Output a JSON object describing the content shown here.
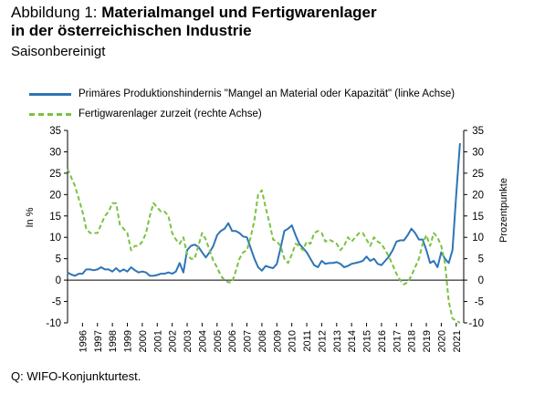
{
  "figure": {
    "title_prefix": "Abbildung 1: ",
    "title_line1": "Materialmangel und Fertigwarenlager",
    "title_line2": "in der österreichischen Industrie",
    "subtitle": "Saisonbereinigt",
    "source": "Q: WIFO-Konjunkturtest."
  },
  "colors": {
    "series1": "#2e75b6",
    "series2": "#7ac143",
    "axis": "#000000"
  },
  "chart_data": {
    "type": "line",
    "xlabel": "",
    "ylabel_left": "In %",
    "ylabel_right": "Prozentpunkte",
    "ylim_left": [
      -10,
      35
    ],
    "ylim_right": [
      -10,
      35
    ],
    "yticks": [
      -10,
      -5,
      0,
      5,
      10,
      15,
      20,
      25,
      30,
      35
    ],
    "xlim": [
      1995.0,
      2021.5
    ],
    "xticks": [
      "1996",
      "1997",
      "1998",
      "1999",
      "2000",
      "2001",
      "2002",
      "2003",
      "2004",
      "2005",
      "2006",
      "2007",
      "2008",
      "2009",
      "2010",
      "2011",
      "2012",
      "2013",
      "2014",
      "2015",
      "2016",
      "2017",
      "2018",
      "2019",
      "2020",
      "2021"
    ],
    "grid": false,
    "legend_position": "top",
    "series": [
      {
        "name": "Primäres Produktionshindernis \"Mangel an Material oder Kapazität\" (linke Achse)",
        "axis": "left",
        "style": "solid",
        "x": [
          1995.0,
          1995.25,
          1995.5,
          1995.75,
          1996.0,
          1996.25,
          1996.5,
          1996.75,
          1997.0,
          1997.25,
          1997.5,
          1997.75,
          1998.0,
          1998.25,
          1998.5,
          1998.75,
          1999.0,
          1999.25,
          1999.5,
          1999.75,
          2000.0,
          2000.25,
          2000.5,
          2000.75,
          2001.0,
          2001.25,
          2001.5,
          2001.75,
          2002.0,
          2002.25,
          2002.5,
          2002.75,
          2003.0,
          2003.25,
          2003.5,
          2003.75,
          2004.0,
          2004.25,
          2004.5,
          2004.75,
          2005.0,
          2005.25,
          2005.5,
          2005.75,
          2006.0,
          2006.25,
          2006.5,
          2006.75,
          2007.0,
          2007.25,
          2007.5,
          2007.75,
          2008.0,
          2008.25,
          2008.5,
          2008.75,
          2009.0,
          2009.25,
          2009.5,
          2009.75,
          2010.0,
          2010.25,
          2010.5,
          2010.75,
          2011.0,
          2011.25,
          2011.5,
          2011.75,
          2012.0,
          2012.25,
          2012.5,
          2012.75,
          2013.0,
          2013.25,
          2013.5,
          2013.75,
          2014.0,
          2014.25,
          2014.5,
          2014.75,
          2015.0,
          2015.25,
          2015.5,
          2015.75,
          2016.0,
          2016.25,
          2016.5,
          2016.75,
          2017.0,
          2017.25,
          2017.5,
          2017.75,
          2018.0,
          2018.25,
          2018.5,
          2018.75,
          2019.0,
          2019.25,
          2019.5,
          2019.75,
          2020.0,
          2020.25,
          2020.5,
          2020.75,
          2021.0,
          2021.25
        ],
        "values": [
          1.8,
          1.3,
          1.0,
          1.5,
          1.5,
          2.5,
          2.5,
          2.3,
          2.5,
          3.0,
          2.5,
          2.5,
          2.0,
          2.8,
          2.0,
          2.5,
          2.0,
          3.0,
          2.3,
          1.8,
          2.0,
          1.8,
          1.0,
          1.0,
          1.2,
          1.5,
          1.5,
          1.8,
          1.5,
          2.0,
          4.0,
          1.8,
          7.0,
          8.0,
          8.3,
          7.8,
          6.5,
          5.3,
          6.5,
          8.0,
          10.5,
          11.5,
          12.0,
          13.3,
          11.5,
          11.5,
          11.0,
          10.2,
          10.0,
          7.5,
          5.0,
          3.0,
          2.2,
          3.3,
          3.0,
          2.8,
          3.8,
          7.5,
          11.5,
          12.0,
          12.8,
          10.5,
          8.5,
          7.5,
          6.5,
          5.0,
          3.5,
          3.0,
          4.5,
          3.8,
          4.0,
          4.0,
          4.2,
          3.8,
          3.0,
          3.3,
          3.8,
          4.0,
          4.2,
          4.5,
          5.5,
          4.5,
          5.0,
          3.8,
          3.5,
          4.5,
          5.5,
          7.0,
          9.0,
          9.3,
          9.3,
          10.5,
          12.0,
          11.0,
          9.5,
          9.5,
          7.0,
          4.0,
          4.5,
          3.0,
          6.5,
          5.0,
          4.0,
          7.0,
          20.0,
          32.0
        ]
      },
      {
        "name": "Fertigwarenlager zurzeit (rechte Achse)",
        "axis": "right",
        "style": "dashed",
        "x": [
          1995.0,
          1995.25,
          1995.5,
          1995.75,
          1996.0,
          1996.25,
          1996.5,
          1996.75,
          1997.0,
          1997.25,
          1997.5,
          1997.75,
          1998.0,
          1998.25,
          1998.5,
          1998.75,
          1999.0,
          1999.25,
          1999.5,
          1999.75,
          2000.0,
          2000.25,
          2000.5,
          2000.75,
          2001.0,
          2001.25,
          2001.5,
          2001.75,
          2002.0,
          2002.25,
          2002.5,
          2002.75,
          2003.0,
          2003.25,
          2003.5,
          2003.75,
          2004.0,
          2004.25,
          2004.5,
          2004.75,
          2005.0,
          2005.25,
          2005.5,
          2005.75,
          2006.0,
          2006.25,
          2006.5,
          2006.75,
          2007.0,
          2007.25,
          2007.5,
          2007.75,
          2008.0,
          2008.25,
          2008.5,
          2008.75,
          2009.0,
          2009.25,
          2009.5,
          2009.75,
          2010.0,
          2010.25,
          2010.5,
          2010.75,
          2011.0,
          2011.25,
          2011.5,
          2011.75,
          2012.0,
          2012.25,
          2012.5,
          2012.75,
          2013.0,
          2013.25,
          2013.5,
          2013.75,
          2014.0,
          2014.25,
          2014.5,
          2014.75,
          2015.0,
          2015.25,
          2015.5,
          2015.75,
          2016.0,
          2016.25,
          2016.5,
          2016.75,
          2017.0,
          2017.25,
          2017.5,
          2017.75,
          2018.0,
          2018.25,
          2018.5,
          2018.75,
          2019.0,
          2019.25,
          2019.5,
          2019.75,
          2020.0,
          2020.25,
          2020.5,
          2020.75,
          2021.0,
          2021.25
        ],
        "values": [
          26.0,
          24.0,
          22.0,
          19.0,
          16.0,
          12.0,
          11.0,
          11.0,
          11.0,
          13.0,
          15.0,
          16.0,
          18.0,
          18.0,
          13.0,
          12.0,
          11.0,
          7.0,
          8.0,
          8.0,
          9.0,
          11.0,
          15.0,
          18.0,
          17.0,
          16.0,
          16.0,
          15.0,
          11.0,
          9.5,
          8.5,
          10.0,
          6.0,
          5.0,
          5.0,
          8.0,
          11.0,
          9.5,
          7.0,
          4.5,
          3.0,
          1.0,
          0.0,
          -0.5,
          -0.5,
          2.0,
          5.0,
          6.5,
          7.0,
          10.0,
          14.0,
          20.0,
          21.0,
          17.0,
          13.5,
          9.5,
          9.0,
          8.0,
          5.0,
          4.0,
          6.0,
          8.5,
          8.0,
          7.0,
          9.0,
          8.5,
          11.0,
          11.5,
          11.0,
          9.0,
          9.5,
          9.0,
          8.5,
          7.0,
          8.0,
          10.0,
          9.0,
          10.0,
          11.0,
          11.0,
          9.5,
          8.0,
          10.0,
          9.0,
          8.5,
          7.0,
          5.5,
          3.5,
          1.5,
          0.0,
          -1.0,
          -0.5,
          1.0,
          3.0,
          5.0,
          8.5,
          10.5,
          8.0,
          11.0,
          10.0,
          8.0,
          4.0,
          -5.0,
          -9.0,
          -9.5,
          -10.0
        ]
      }
    ]
  }
}
